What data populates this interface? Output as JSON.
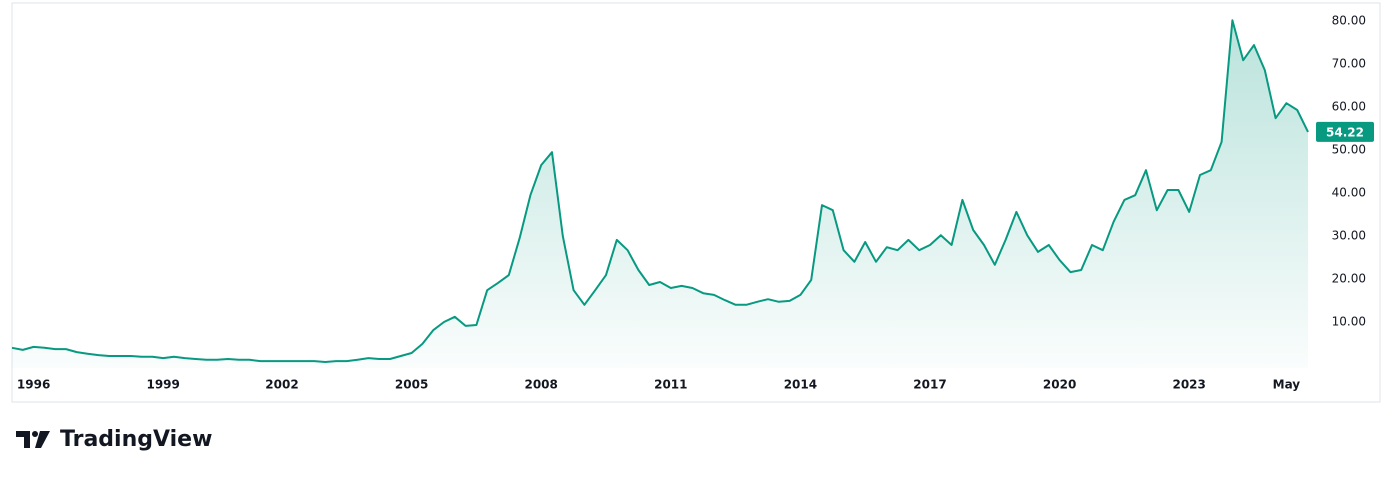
{
  "chart_data": {
    "type": "area",
    "categories": [
      null,
      null,
      "1996",
      null,
      null,
      null,
      null,
      null,
      null,
      null,
      null,
      null,
      null,
      null,
      "1999",
      null,
      null,
      null,
      null,
      null,
      null,
      null,
      null,
      null,
      null,
      "2002",
      null,
      null,
      null,
      null,
      null,
      null,
      null,
      null,
      null,
      null,
      null,
      "2005",
      null,
      null,
      null,
      null,
      null,
      null,
      null,
      null,
      null,
      null,
      null,
      "2008",
      null,
      null,
      null,
      null,
      null,
      null,
      null,
      null,
      null,
      null,
      null,
      "2011",
      null,
      null,
      null,
      null,
      null,
      null,
      null,
      null,
      null,
      null,
      null,
      "2014",
      null,
      null,
      null,
      null,
      null,
      null,
      null,
      null,
      null,
      null,
      null,
      "2017",
      null,
      null,
      null,
      null,
      null,
      null,
      null,
      null,
      null,
      null,
      null,
      "2020",
      null,
      null,
      null,
      null,
      null,
      null,
      null,
      null,
      null,
      null,
      null,
      "2023",
      null,
      null,
      null,
      null,
      null,
      null,
      null,
      null,
      "May",
      null,
      null
    ],
    "series": [
      {
        "color": "#089981",
        "values": [
          4.0,
          3.5,
          4.2,
          4.0,
          3.7,
          3.7,
          3.0,
          2.6,
          2.3,
          2.1,
          2.1,
          2.1,
          1.9,
          1.9,
          1.6,
          1.9,
          1.6,
          1.4,
          1.2,
          1.2,
          1.4,
          1.2,
          1.2,
          0.9,
          0.9,
          0.9,
          0.9,
          0.9,
          0.9,
          0.7,
          0.9,
          0.9,
          1.2,
          1.6,
          1.4,
          1.4,
          2.1,
          2.8,
          4.9,
          8.1,
          10.0,
          11.2,
          9.1,
          9.3,
          17.4,
          19.1,
          20.9,
          29.5,
          39.5,
          46.5,
          49.5,
          30.0,
          17.4,
          14.0,
          17.4,
          20.9,
          29.1,
          26.7,
          22.1,
          18.6,
          19.3,
          17.9,
          18.4,
          17.9,
          16.7,
          16.3,
          15.1,
          14.0,
          14.0,
          14.7,
          15.3,
          14.7,
          14.9,
          16.3,
          19.8,
          37.2,
          36.0,
          26.7,
          24.0,
          28.6,
          24.0,
          27.4,
          26.7,
          29.1,
          26.7,
          27.9,
          30.2,
          27.9,
          38.4,
          31.4,
          27.9,
          23.3,
          29.1,
          35.6,
          30.2,
          26.3,
          27.9,
          24.4,
          21.6,
          22.1,
          27.9,
          26.7,
          33.3,
          38.4,
          39.5,
          45.3,
          36.0,
          40.7,
          40.7,
          35.6,
          44.2,
          45.3,
          51.9,
          80.2,
          70.9,
          74.4,
          68.6,
          57.4,
          60.9,
          59.3,
          54.22
        ]
      }
    ],
    "ylim": [
      -0.7,
      84.2
    ],
    "yticks": [
      {
        "value": 10,
        "label": "10.00"
      },
      {
        "value": 20,
        "label": "20.00"
      },
      {
        "value": 30,
        "label": "30.00"
      },
      {
        "value": 40,
        "label": "40.00"
      },
      {
        "value": 50,
        "label": "50.00"
      },
      {
        "value": 60,
        "label": "60.00"
      },
      {
        "value": 70,
        "label": "70.00"
      },
      {
        "value": 80,
        "label": "80.00"
      }
    ],
    "grid": false
  },
  "brand": "TradingView"
}
